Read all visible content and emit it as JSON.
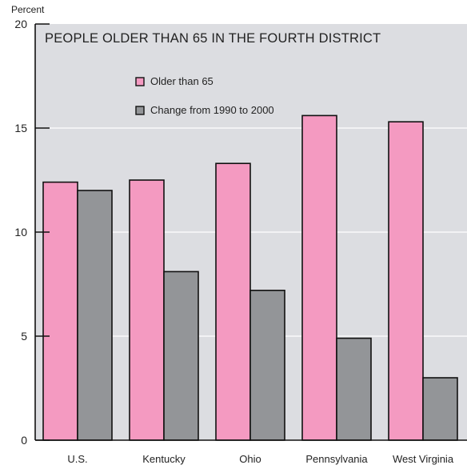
{
  "chart_data": {
    "type": "bar",
    "title": "PEOPLE OLDER THAN 65 IN THE FOURTH DISTRICT",
    "ylabel": "Percent",
    "xlabel": "",
    "ylim": [
      0,
      20
    ],
    "yticks": [
      0,
      5,
      10,
      15,
      20
    ],
    "grid": true,
    "legend_position": "top-center",
    "categories": [
      "U.S.",
      "Kentucky",
      "Ohio",
      "Pennsylvania",
      "West Virginia"
    ],
    "series": [
      {
        "name": "Older than 65",
        "color": "#f49ac1",
        "values": [
          12.4,
          12.5,
          13.3,
          15.6,
          15.3
        ]
      },
      {
        "name": "Change from 1990 to 2000",
        "color": "#939598",
        "values": [
          12.0,
          8.1,
          7.2,
          4.9,
          3.0
        ]
      }
    ],
    "colors": {
      "plot_background": "#dcdde1",
      "grid": "#ffffff",
      "bar_outline": "#111111"
    }
  }
}
